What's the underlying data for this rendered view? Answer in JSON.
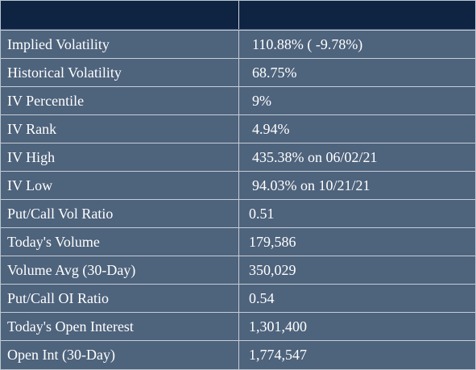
{
  "table": {
    "rows": [
      {
        "label": "Implied Volatility",
        "value": "110.88% (  -9.78%)"
      },
      {
        "label": "Historical Volatility",
        "value": "68.75%"
      },
      {
        "label": "IV Percentile",
        "value": "9%"
      },
      {
        "label": "IV Rank",
        "value": "4.94%"
      },
      {
        "label": "IV High",
        "value": "435.38% on 06/02/21"
      },
      {
        "label": "IV Low",
        "value": "94.03% on 10/21/21"
      },
      {
        "label": "Put/Call Vol Ratio",
        "value": "0.51"
      },
      {
        "label": "Today's Volume",
        "value": "179,586"
      },
      {
        "label": "Volume Avg (30-Day)",
        "value": "350,029"
      },
      {
        "label": "Put/Call OI Ratio",
        "value": "0.54"
      },
      {
        "label": "Today's Open Interest",
        "value": "1,301,400"
      },
      {
        "label": "Open Int (30-Day)",
        "value": "1,774,547"
      }
    ]
  }
}
